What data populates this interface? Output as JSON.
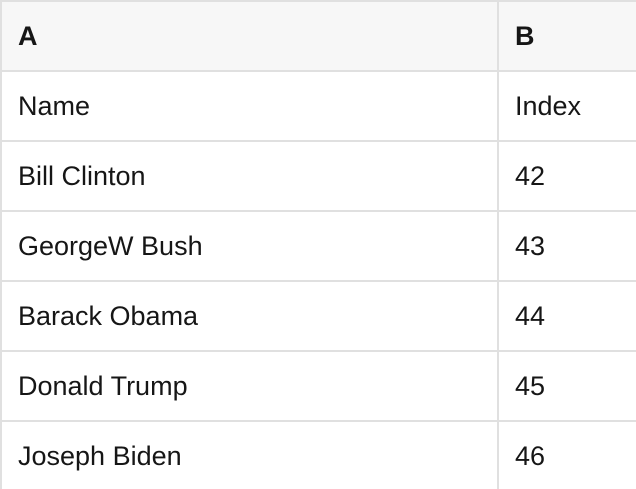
{
  "table": {
    "column_headers": [
      "A",
      "B"
    ],
    "rows": [
      [
        "Name",
        "Index"
      ],
      [
        "Bill Clinton",
        42
      ],
      [
        "GeorgeW Bush",
        43
      ],
      [
        "Barack Obama",
        44
      ],
      [
        "Donald Trump",
        45
      ],
      [
        "Joseph Biden",
        46
      ]
    ]
  },
  "colors": {
    "grid_border": "#e0e0e0",
    "header_background": "#f7f7f7",
    "cell_background": "#ffffff",
    "text": "#161616"
  }
}
